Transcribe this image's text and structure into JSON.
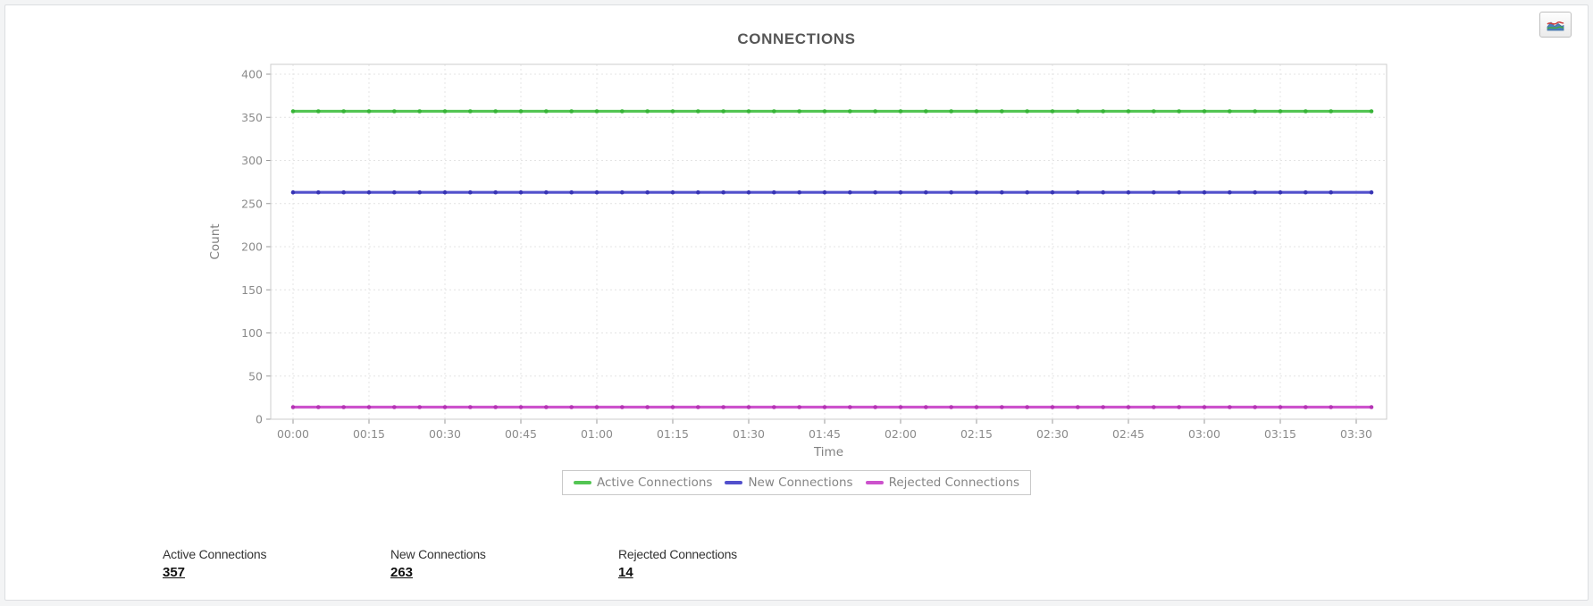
{
  "card": {
    "title": "CONNECTIONS",
    "chart_type_button": {
      "icon": "area-chart-icon"
    }
  },
  "chart_data": {
    "type": "line",
    "title": "CONNECTIONS",
    "xlabel": "Time",
    "ylabel": "Count",
    "x_tick_labels": [
      "00:00",
      "00:15",
      "00:30",
      "00:45",
      "01:00",
      "01:15",
      "01:30",
      "01:45",
      "02:00",
      "02:15",
      "02:30",
      "02:45",
      "03:00",
      "03:15",
      "03:30"
    ],
    "x_tick_minutes": [
      0,
      15,
      30,
      45,
      60,
      75,
      90,
      105,
      120,
      135,
      150,
      165,
      180,
      195,
      210
    ],
    "y_ticks": [
      0,
      50,
      100,
      150,
      200,
      250,
      300,
      350,
      400
    ],
    "ylim": [
      0,
      411
    ],
    "x_range_minutes": [
      0,
      213
    ],
    "sample_interval_minutes": 5,
    "grid": true,
    "legend_position": "bottom",
    "series": [
      {
        "name": "Active Connections",
        "constant_value": 357,
        "color": "#53c553",
        "marker_color": "#38b438"
      },
      {
        "name": "New Connections",
        "constant_value": 263,
        "color": "#5250cc",
        "marker_color": "#3734b4"
      },
      {
        "name": "Rejected Connections",
        "constant_value": 14,
        "color": "#cc52cc",
        "marker_color": "#b434b4"
      }
    ]
  },
  "stats": [
    {
      "label": "Active Connections",
      "value": "357"
    },
    {
      "label": "New Connections",
      "value": "263"
    },
    {
      "label": "Rejected Connections",
      "value": "14"
    }
  ],
  "colors": {
    "grid": "#e4e4e4",
    "plot_border": "#cccccc",
    "tick": "#999999"
  }
}
